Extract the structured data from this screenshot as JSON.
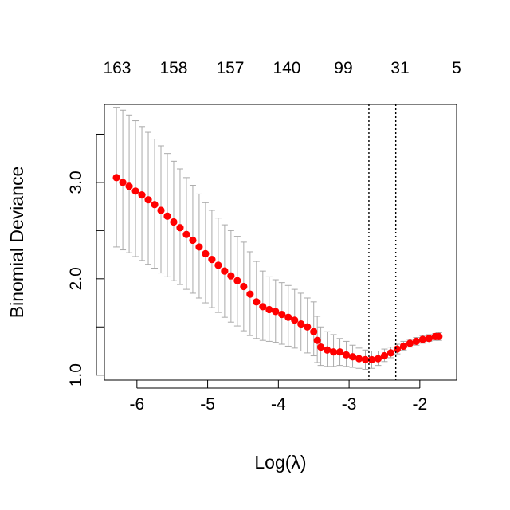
{
  "chart_data": {
    "type": "scatter",
    "title": "",
    "xlabel": "Log(λ)",
    "ylabel": "Binomial Deviance",
    "xlim": [
      -6.46,
      -1.48
    ],
    "ylim": [
      0.948,
      3.81
    ],
    "x_ticks": [
      -6,
      -5,
      -4,
      -3,
      -2
    ],
    "x_tick_labels": [
      "-6",
      "-5",
      "-4",
      "-3",
      "-2"
    ],
    "y_ticks": [
      1.0,
      1.5,
      2.0,
      2.5,
      3.0,
      3.5
    ],
    "y_tick_labels": [
      "1.0",
      "",
      "2.0",
      "",
      "3.0",
      ""
    ],
    "top_axis": {
      "x": [
        -6.28,
        -5.48,
        -4.68,
        -3.88,
        -3.08,
        -2.28,
        -1.48
      ],
      "labels": [
        "163",
        "158",
        "157",
        "140",
        "99",
        "31",
        "5"
      ]
    },
    "vlines": [
      -2.72,
      -2.34
    ],
    "grid": false,
    "colors": {
      "points": "#ff0000",
      "error_bars": "#aaaaaa",
      "frame": "#000000"
    },
    "series": [
      {
        "x": [
          -6.29,
          -6.2,
          -6.11,
          -6.02,
          -5.93,
          -5.84,
          -5.75,
          -5.66,
          -5.57,
          -5.48,
          -5.39,
          -5.3,
          -5.21,
          -5.12,
          -5.03,
          -4.94,
          -4.85,
          -4.76,
          -4.67,
          -4.58,
          -4.49,
          -4.4,
          -4.31,
          -4.22,
          -4.13,
          -4.04,
          -3.95,
          -3.86,
          -3.77,
          -3.68,
          -3.59,
          -3.5,
          -3.45,
          -3.4,
          -3.31,
          -3.22,
          -3.13,
          -3.04,
          -2.95,
          -2.86,
          -2.77,
          -2.68,
          -2.59,
          -2.5,
          -2.41,
          -2.32,
          -2.23,
          -2.14,
          -2.05,
          -1.96,
          -1.87,
          -1.78,
          -1.73
        ],
        "y": [
          3.05,
          3.0,
          2.96,
          2.91,
          2.87,
          2.82,
          2.77,
          2.71,
          2.65,
          2.59,
          2.53,
          2.46,
          2.4,
          2.33,
          2.26,
          2.2,
          2.14,
          2.08,
          2.03,
          1.98,
          1.92,
          1.84,
          1.76,
          1.71,
          1.68,
          1.66,
          1.63,
          1.6,
          1.57,
          1.53,
          1.5,
          1.45,
          1.36,
          1.29,
          1.26,
          1.24,
          1.24,
          1.21,
          1.19,
          1.17,
          1.16,
          1.16,
          1.17,
          1.2,
          1.23,
          1.27,
          1.3,
          1.33,
          1.35,
          1.37,
          1.38,
          1.4,
          1.4
        ],
        "y_low": [
          2.33,
          2.3,
          2.27,
          2.23,
          2.19,
          2.15,
          2.11,
          2.06,
          2.02,
          1.98,
          1.94,
          1.89,
          1.85,
          1.8,
          1.75,
          1.7,
          1.65,
          1.6,
          1.55,
          1.51,
          1.46,
          1.41,
          1.38,
          1.36,
          1.35,
          1.34,
          1.32,
          1.3,
          1.28,
          1.25,
          1.23,
          1.2,
          1.13,
          1.1,
          1.09,
          1.09,
          1.1,
          1.09,
          1.08,
          1.07,
          1.06,
          1.07,
          1.1,
          1.14,
          1.18,
          1.22,
          1.26,
          1.29,
          1.31,
          1.33,
          1.35,
          1.36,
          1.36
        ],
        "y_high": [
          3.78,
          3.75,
          3.7,
          3.64,
          3.58,
          3.52,
          3.45,
          3.38,
          3.3,
          3.22,
          3.14,
          3.05,
          2.97,
          2.88,
          2.79,
          2.71,
          2.63,
          2.56,
          2.5,
          2.44,
          2.38,
          2.28,
          2.18,
          2.08,
          2.02,
          1.99,
          1.96,
          1.93,
          1.89,
          1.85,
          1.8,
          1.76,
          1.61,
          1.5,
          1.45,
          1.42,
          1.38,
          1.35,
          1.31,
          1.28,
          1.26,
          1.25,
          1.25,
          1.27,
          1.29,
          1.32,
          1.35,
          1.37,
          1.39,
          1.41,
          1.42,
          1.43,
          1.44
        ]
      }
    ]
  }
}
